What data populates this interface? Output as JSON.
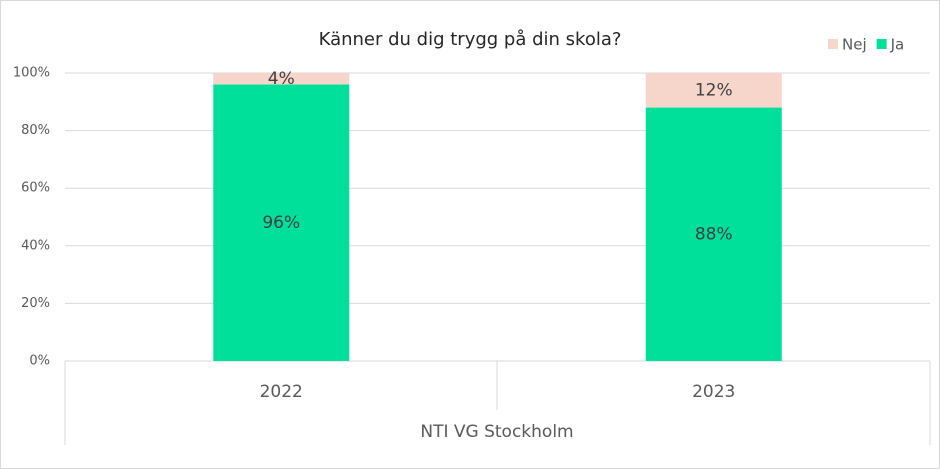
{
  "chart_data": {
    "type": "stacked_bar",
    "title": "Känner du dig trygg på din skola?",
    "categories": [
      "2022",
      "2023"
    ],
    "x_axis_label": "NTI VG Stockholm",
    "series": [
      {
        "name": "Ja",
        "color": "#00e09a",
        "values": [
          96,
          88
        ],
        "value_labels": [
          "96%",
          "88%"
        ]
      },
      {
        "name": "Nej",
        "color": "#f6d5cb",
        "values": [
          4,
          12
        ],
        "value_labels": [
          "4%",
          "12%"
        ]
      }
    ],
    "ylim": [
      0,
      100
    ],
    "yticks": [
      {
        "value": 0,
        "label": "0%"
      },
      {
        "value": 20,
        "label": "20%"
      },
      {
        "value": 40,
        "label": "40%"
      },
      {
        "value": 60,
        "label": "60%"
      },
      {
        "value": 80,
        "label": "80%"
      },
      {
        "value": 100,
        "label": "100%"
      }
    ],
    "grid": true,
    "legend": "top-right"
  }
}
